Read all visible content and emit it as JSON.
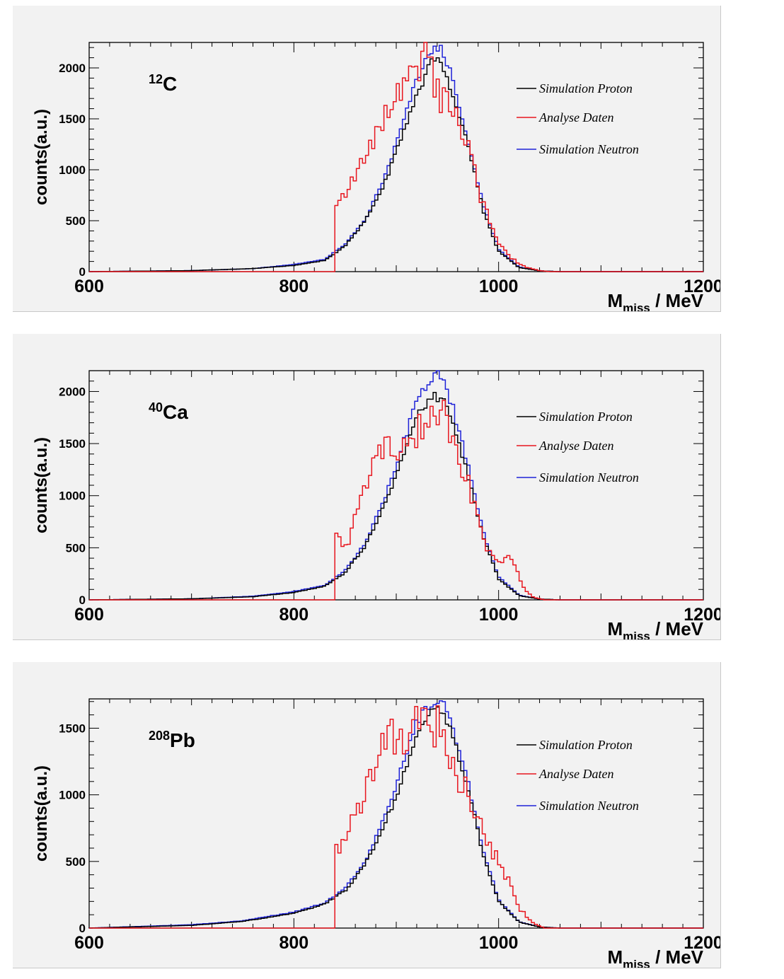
{
  "colors": {
    "proton": "#000000",
    "data": "#e8161e",
    "neutron": "#1e22d8"
  },
  "chart_data": [
    {
      "type": "histogram",
      "nucleus_mass": "12",
      "nucleus_symbol": "C",
      "xlabel_main": "M",
      "xlabel_sub": "miss",
      "xlabel_unit": " / MeV",
      "ylabel": "counts(a.u.)",
      "xlim": [
        600,
        1200
      ],
      "ylim": [
        0,
        2250
      ],
      "xticks": [
        600,
        800,
        1000,
        1200
      ],
      "yticks": [
        0,
        500,
        1000,
        1500,
        2000
      ],
      "data_cut": 840,
      "series": [
        {
          "name": "Simulation Proton",
          "color": "proton",
          "x": [
            600,
            700,
            760,
            800,
            830,
            850,
            870,
            890,
            905,
            920,
            935,
            945,
            955,
            970,
            985,
            1000,
            1020,
            1040,
            1060
          ],
          "y": [
            0,
            10,
            30,
            60,
            110,
            250,
            500,
            900,
            1300,
            1750,
            2070,
            2050,
            1750,
            1250,
            600,
            200,
            40,
            8,
            0
          ]
        },
        {
          "name": "Analyse Daten",
          "color": "data",
          "x": [
            840,
            845,
            852,
            860,
            868,
            878,
            890,
            900,
            910,
            920,
            930,
            937,
            945,
            955,
            970,
            985,
            1000,
            1010,
            1025,
            1040,
            1050
          ],
          "y": [
            700,
            750,
            680,
            1000,
            1100,
            1300,
            1550,
            1700,
            1850,
            2000,
            2250,
            1800,
            1700,
            1600,
            1250,
            650,
            300,
            150,
            50,
            10,
            0
          ]
        },
        {
          "name": "Simulation Neutron",
          "color": "neutron",
          "x": [
            600,
            700,
            760,
            800,
            830,
            850,
            870,
            890,
            905,
            920,
            935,
            945,
            955,
            970,
            985,
            1000,
            1020,
            1040,
            1060
          ],
          "y": [
            0,
            10,
            30,
            70,
            120,
            270,
            520,
            950,
            1400,
            1900,
            2200,
            2200,
            1900,
            1300,
            650,
            220,
            45,
            8,
            0
          ]
        }
      ]
    },
    {
      "type": "histogram",
      "nucleus_mass": "40",
      "nucleus_symbol": "Ca",
      "xlabel_main": "M",
      "xlabel_sub": "miss",
      "xlabel_unit": " / MeV",
      "ylabel": "counts(a.u.)",
      "xlim": [
        600,
        1200
      ],
      "ylim": [
        0,
        2200
      ],
      "xticks": [
        600,
        800,
        1000,
        1200
      ],
      "yticks": [
        0,
        500,
        1000,
        1500,
        2000
      ],
      "data_cut": 840,
      "series": [
        {
          "name": "Simulation Proton",
          "color": "proton",
          "x": [
            600,
            700,
            760,
            800,
            830,
            850,
            870,
            890,
            905,
            920,
            935,
            945,
            955,
            970,
            985,
            1000,
            1020,
            1040,
            1060
          ],
          "y": [
            0,
            10,
            30,
            70,
            130,
            260,
            520,
            950,
            1350,
            1750,
            1950,
            1950,
            1700,
            1200,
            600,
            200,
            40,
            8,
            0
          ]
        },
        {
          "name": "Analyse Daten",
          "color": "data",
          "x": [
            840,
            845,
            852,
            860,
            868,
            878,
            890,
            900,
            910,
            920,
            930,
            937,
            945,
            955,
            970,
            985,
            1000,
            1012,
            1025,
            1035,
            1045
          ],
          "y": [
            600,
            580,
            520,
            800,
            1000,
            1300,
            1500,
            1450,
            1500,
            1550,
            1850,
            1600,
            1800,
            1500,
            1150,
            550,
            350,
            400,
            100,
            20,
            0
          ]
        },
        {
          "name": "Simulation Neutron",
          "color": "neutron",
          "x": [
            600,
            700,
            760,
            800,
            830,
            850,
            870,
            890,
            905,
            920,
            935,
            945,
            955,
            970,
            985,
            1000,
            1020,
            1040,
            1060
          ],
          "y": [
            0,
            10,
            35,
            80,
            140,
            280,
            550,
            1000,
            1450,
            1900,
            2150,
            2150,
            1850,
            1300,
            650,
            220,
            45,
            8,
            0
          ]
        }
      ]
    },
    {
      "type": "histogram",
      "nucleus_mass": "208",
      "nucleus_symbol": "Pb",
      "xlabel_main": "M",
      "xlabel_sub": "miss",
      "xlabel_unit": " / MeV",
      "ylabel": "counts(a.u.)",
      "xlim": [
        600,
        1200
      ],
      "ylim": [
        0,
        1720
      ],
      "xticks": [
        600,
        800,
        1000,
        1200
      ],
      "yticks": [
        0,
        500,
        1000,
        1500
      ],
      "data_cut": 840,
      "series": [
        {
          "name": "Simulation Proton",
          "color": "proton",
          "x": [
            600,
            700,
            750,
            800,
            830,
            850,
            870,
            890,
            905,
            920,
            935,
            945,
            955,
            970,
            985,
            1000,
            1020,
            1040,
            1060
          ],
          "y": [
            0,
            20,
            50,
            110,
            180,
            280,
            480,
            800,
            1100,
            1450,
            1620,
            1620,
            1450,
            1050,
            550,
            200,
            45,
            8,
            0
          ]
        },
        {
          "name": "Analyse Daten",
          "color": "data",
          "x": [
            840,
            845,
            852,
            860,
            868,
            878,
            890,
            900,
            910,
            920,
            930,
            937,
            945,
            955,
            970,
            985,
            1000,
            1010,
            1020,
            1035,
            1045
          ],
          "y": [
            600,
            600,
            700,
            850,
            1000,
            1200,
            1400,
            1450,
            1250,
            1550,
            1700,
            1500,
            1600,
            1200,
            1000,
            700,
            500,
            350,
            150,
            30,
            0
          ]
        },
        {
          "name": "Simulation Neutron",
          "color": "neutron",
          "x": [
            600,
            700,
            750,
            800,
            830,
            850,
            870,
            890,
            905,
            920,
            935,
            945,
            955,
            970,
            985,
            1000,
            1020,
            1040,
            1060
          ],
          "y": [
            0,
            25,
            55,
            120,
            190,
            300,
            500,
            850,
            1200,
            1550,
            1700,
            1700,
            1500,
            1100,
            580,
            210,
            48,
            8,
            0
          ]
        }
      ]
    }
  ]
}
